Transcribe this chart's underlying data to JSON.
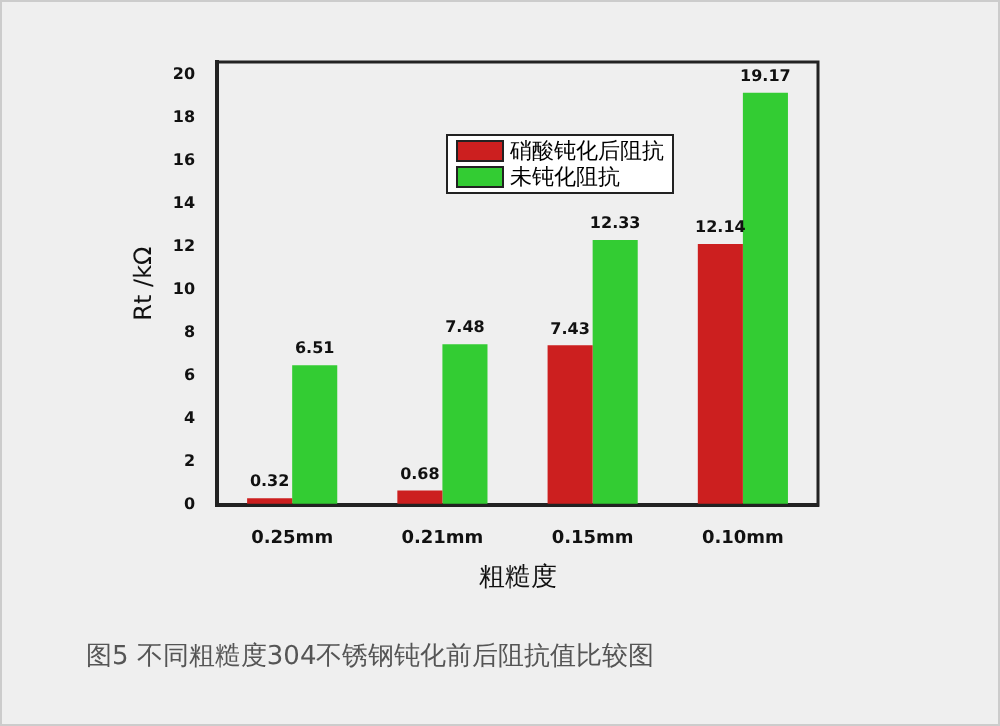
{
  "chart_data": {
    "type": "bar",
    "xlabel": "粗糙度",
    "ylabel": "Rt /kΩ",
    "categories": [
      "0.25mm",
      "0.21mm",
      "0.15mm",
      "0.10mm"
    ],
    "series": [
      {
        "name": "硝酸钝化后阻抗",
        "color": "#cc1f1f",
        "values": [
          0.32,
          0.68,
          7.43,
          12.14
        ],
        "value_labels": [
          "0.32",
          "0.68",
          "7.43",
          "12.14"
        ]
      },
      {
        "name": "未钝化阻抗",
        "color": "#33cc33",
        "values": [
          6.51,
          7.48,
          12.33,
          19.17
        ],
        "value_labels": [
          "6.51",
          "7.48",
          "12.33",
          "19.17"
        ]
      }
    ],
    "ylim": [
      0,
      20.6
    ],
    "yticks": [
      0,
      2,
      4,
      6,
      8,
      10,
      12,
      14,
      16,
      18,
      20
    ],
    "grid": false,
    "legend": "top right",
    "annotations": [
      "图5 不同粗糙度304不锈钢钝化前后阻抗值比较图"
    ]
  }
}
